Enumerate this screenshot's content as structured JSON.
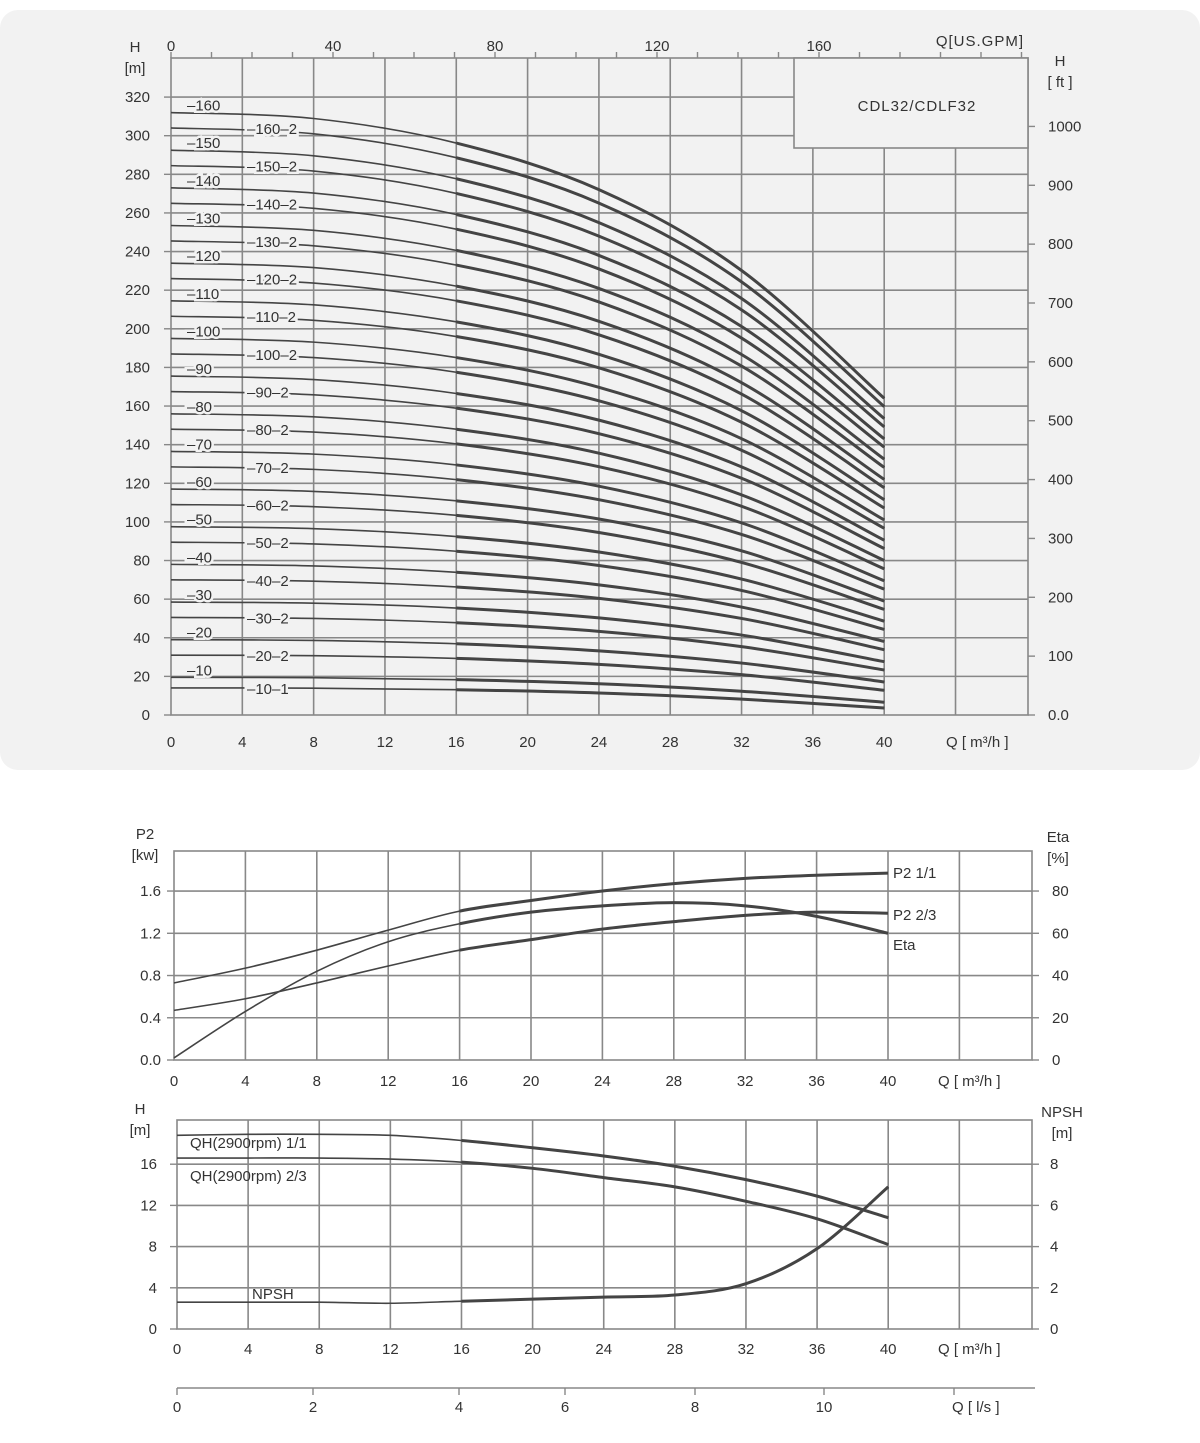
{
  "colors": {
    "panel": "#f2f2f2",
    "grid": "#888888",
    "curve": "#444444",
    "text": "#333333"
  },
  "chart_data": [
    {
      "type": "line",
      "title": "CDL32/CDLF32",
      "x_label": "Q [ m³/h ]",
      "x_ticks": [
        "0",
        "4",
        "8",
        "12",
        "16",
        "20",
        "24",
        "28",
        "32",
        "36",
        "40"
      ],
      "x2_label": "Q[US.GPM]",
      "x2_ticks": [
        "0",
        "40",
        "80",
        "120",
        "160"
      ],
      "y_label": "H",
      "y_unit": "[m]",
      "y_ticks": [
        "0",
        "20",
        "40",
        "60",
        "80",
        "100",
        "120",
        "140",
        "160",
        "180",
        "200",
        "220",
        "240",
        "260",
        "280",
        "300",
        "320"
      ],
      "y2_label": "H",
      "y2_unit": "[ ft ]",
      "y2_ticks": [
        "0.0",
        "100",
        "200",
        "300",
        "400",
        "500",
        "600",
        "700",
        "800",
        "900",
        "1000"
      ],
      "xlim": [
        0,
        48
      ],
      "ylim": [
        0,
        340
      ],
      "grid": true,
      "x": [
        0,
        8,
        16,
        24,
        32,
        40
      ],
      "series": [
        {
          "name": "–160",
          "values": [
            312,
            308.9,
            296.2,
            272.1,
            230.2,
            164.0
          ]
        },
        {
          "name": "–160–2",
          "values": [
            304,
            301.0,
            288.6,
            265.1,
            224.3,
            159.7
          ]
        },
        {
          "name": "–150",
          "values": [
            292.5,
            289.6,
            277.7,
            255.0,
            215.7,
            153.5
          ]
        },
        {
          "name": "–150–2",
          "values": [
            284.5,
            281.7,
            270.1,
            248.0,
            209.8,
            149.2
          ]
        },
        {
          "name": "–140",
          "values": [
            273,
            270.3,
            259.2,
            238.0,
            201.2,
            143.0
          ]
        },
        {
          "name": "–140–2",
          "values": [
            265,
            262.4,
            251.6,
            231.0,
            195.2,
            138.7
          ]
        },
        {
          "name": "–130",
          "values": [
            253.5,
            251.0,
            240.6,
            220.9,
            186.7,
            132.5
          ]
        },
        {
          "name": "–130–2",
          "values": [
            245.5,
            243.0,
            233.0,
            213.9,
            180.7,
            128.2
          ]
        },
        {
          "name": "–120",
          "values": [
            234,
            231.7,
            222.1,
            203.9,
            172.1,
            122.0
          ]
        },
        {
          "name": "–120–2",
          "values": [
            226,
            223.7,
            214.5,
            196.9,
            166.2,
            117.7
          ]
        },
        {
          "name": "–110",
          "values": [
            214.5,
            212.4,
            203.6,
            186.8,
            157.6,
            111.5
          ]
        },
        {
          "name": "–110–2",
          "values": [
            206.5,
            204.4,
            196.0,
            179.8,
            151.6,
            107.2
          ]
        },
        {
          "name": "–100",
          "values": [
            195,
            193.1,
            185.1,
            169.7,
            143.1,
            101.0
          ]
        },
        {
          "name": "–100–2",
          "values": [
            187,
            185.1,
            177.5,
            162.7,
            137.1,
            96.7
          ]
        },
        {
          "name": "–90",
          "values": [
            175.5,
            173.7,
            166.5,
            152.7,
            128.5,
            90.5
          ]
        },
        {
          "name": "–90–2",
          "values": [
            167.5,
            165.8,
            158.9,
            145.7,
            122.6,
            86.2
          ]
        },
        {
          "name": "–80",
          "values": [
            156,
            154.4,
            148.0,
            135.6,
            114.0,
            80.0
          ]
        },
        {
          "name": "–80–2",
          "values": [
            148,
            146.5,
            140.4,
            128.6,
            108.1,
            75.7
          ]
        },
        {
          "name": "–70",
          "values": [
            136.5,
            135.1,
            129.5,
            118.5,
            99.5,
            69.5
          ]
        },
        {
          "name": "–70–2",
          "values": [
            128.5,
            127.2,
            121.9,
            111.5,
            93.5,
            65.2
          ]
        },
        {
          "name": "–60",
          "values": [
            117,
            115.8,
            110.9,
            101.5,
            85.0,
            59.0
          ]
        },
        {
          "name": "–60–2",
          "values": [
            109,
            107.9,
            103.4,
            94.5,
            79.0,
            54.7
          ]
        },
        {
          "name": "–50",
          "values": [
            97.5,
            96.5,
            92.4,
            84.4,
            70.4,
            48.6
          ]
        },
        {
          "name": "–50–2",
          "values": [
            89.5,
            88.6,
            84.8,
            77.4,
            64.5,
            44.3
          ]
        },
        {
          "name": "–40",
          "values": [
            78,
            77.2,
            73.9,
            67.4,
            55.9,
            38.1
          ]
        },
        {
          "name": "–40–2",
          "values": [
            70,
            69.3,
            66.3,
            60.4,
            50.0,
            33.8
          ]
        },
        {
          "name": "–30",
          "values": [
            58.5,
            57.9,
            55.4,
            50.3,
            41.4,
            27.6
          ]
        },
        {
          "name": "–30–2",
          "values": [
            50.5,
            50.0,
            47.8,
            43.3,
            35.4,
            23.3
          ]
        },
        {
          "name": "–20",
          "values": [
            39,
            38.6,
            36.9,
            33.2,
            26.9,
            17.1
          ]
        },
        {
          "name": "–20–2",
          "values": [
            31,
            30.7,
            29.3,
            26.2,
            20.9,
            12.8
          ]
        },
        {
          "name": "–10",
          "values": [
            19.5,
            19.3,
            18.3,
            16.2,
            12.3,
            6.6
          ]
        },
        {
          "name": "–10–1",
          "values": [
            14,
            13.9,
            13.1,
            11.4,
            8.2,
            3.6
          ]
        }
      ]
    },
    {
      "type": "line",
      "x_label": "Q [ m³/h ]",
      "x_ticks": [
        "0",
        "4",
        "8",
        "12",
        "16",
        "20",
        "24",
        "28",
        "32",
        "36",
        "40"
      ],
      "y_label": "P2",
      "y_unit": "[kw]",
      "y_ticks": [
        "0.0",
        "0.4",
        "0.8",
        "1.2",
        "1.6"
      ],
      "y2_label": "Eta",
      "y2_unit": "[%]",
      "y2_ticks": [
        "0",
        "20",
        "40",
        "60",
        "80"
      ],
      "xlim": [
        0,
        48
      ],
      "ylim": [
        0,
        2.0
      ],
      "y2lim": [
        0,
        100
      ],
      "grid": true,
      "x": [
        0,
        4,
        8,
        12,
        16,
        20,
        24,
        28,
        32,
        36,
        40
      ],
      "series": [
        {
          "name": "P2   1/1",
          "axis": "left",
          "values": [
            0.73,
            0.87,
            1.04,
            1.23,
            1.41,
            1.51,
            1.6,
            1.67,
            1.72,
            1.75,
            1.77
          ]
        },
        {
          "name": "P2   2/3",
          "axis": "left",
          "values": [
            0.47,
            0.58,
            0.73,
            0.89,
            1.04,
            1.14,
            1.24,
            1.31,
            1.37,
            1.4,
            1.39
          ]
        },
        {
          "name": "Eta",
          "axis": "right",
          "values": [
            1,
            23,
            42,
            56,
            64.5,
            70,
            73,
            74.5,
            73,
            68,
            60
          ]
        }
      ]
    },
    {
      "type": "line",
      "x_label": "Q [ m³/h ]",
      "x_ticks": [
        "0",
        "4",
        "8",
        "12",
        "16",
        "20",
        "24",
        "28",
        "32",
        "36",
        "40"
      ],
      "x2_label": "Q [ l/s ]",
      "x2_ticks": [
        "0",
        "2",
        "4",
        "6",
        "8",
        "10"
      ],
      "y_label": "H",
      "y_unit": "[m]",
      "y_ticks": [
        "0",
        "4",
        "8",
        "12",
        "16"
      ],
      "y2_label": "NPSH",
      "y2_unit": "[m]",
      "y2_ticks": [
        "0",
        "2",
        "4",
        "6",
        "8"
      ],
      "xlim": [
        0,
        48
      ],
      "ylim": [
        0,
        20
      ],
      "y2lim": [
        0,
        10
      ],
      "grid": true,
      "x": [
        0,
        4,
        8,
        12,
        16,
        20,
        24,
        28,
        32,
        36,
        40
      ],
      "series": [
        {
          "name": "QH(2900rpm) 1/1",
          "axis": "left",
          "values": [
            18.8,
            18.9,
            18.9,
            18.8,
            18.3,
            17.6,
            16.8,
            15.8,
            14.5,
            12.9,
            10.8
          ]
        },
        {
          "name": "QH(2900rpm) 2/3",
          "axis": "left",
          "values": [
            16.6,
            16.6,
            16.6,
            16.5,
            16.2,
            15.6,
            14.7,
            13.8,
            12.4,
            10.7,
            8.2
          ]
        },
        {
          "name": "NPSH",
          "axis": "right",
          "values": [
            1.3,
            1.3,
            1.3,
            1.25,
            1.35,
            1.45,
            1.55,
            1.65,
            2.2,
            3.9,
            6.9
          ]
        }
      ]
    }
  ]
}
